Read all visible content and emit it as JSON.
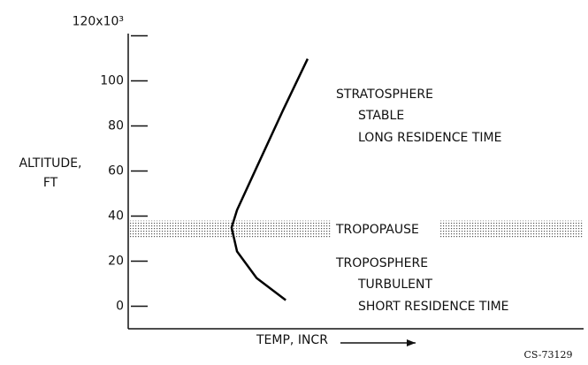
{
  "chart_data": {
    "type": "line",
    "ylabel": [
      "ALTITUDE,",
      "FT"
    ],
    "xlabel": "TEMP, INCR",
    "ylim": [
      -10,
      121
    ],
    "yticks": [
      0,
      20,
      40,
      60,
      80,
      100,
      {
        "value": 120,
        "label": "120x10³"
      }
    ],
    "xlim": [
      0,
      100
    ],
    "series": [
      {
        "color": "#000000",
        "x": [
          34.6,
          28.2,
          23.9,
          22.7,
          23.9,
          28.2,
          34,
          39.4
        ],
        "values": [
          2.7,
          12.5,
          24.3,
          34.9,
          42.7,
          61.6,
          87,
          109.8
        ]
      }
    ],
    "band": {
      "label": "TROPOPAUSE",
      "range": [
        30,
        38
      ]
    },
    "annotations": [
      "STRATOSPHERE",
      "STABLE",
      "LONG RESIDENCE TIME",
      "TROPOSPHERE",
      "TURBULENT",
      "SHORT RESIDENCE TIME"
    ],
    "figure_id": "CS-73129"
  }
}
